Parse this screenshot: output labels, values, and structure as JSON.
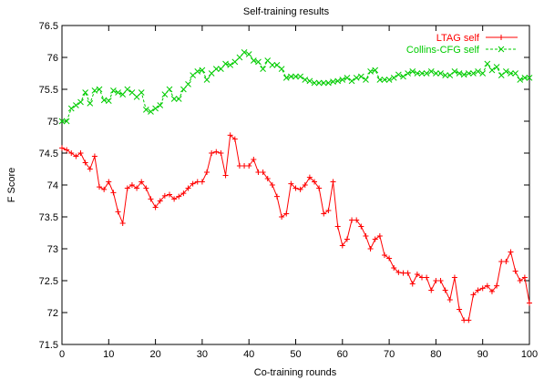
{
  "chart_data": {
    "type": "line",
    "title": "Self-training results",
    "xlabel": "Co-training rounds",
    "ylabel": "F Score",
    "xlim": [
      0,
      100
    ],
    "ylim": [
      71.5,
      76.5
    ],
    "xticks": [
      0,
      10,
      20,
      30,
      40,
      50,
      60,
      70,
      80,
      90,
      100
    ],
    "xtick_labels": [
      "0",
      "10",
      "20",
      "30",
      "40",
      "50",
      "60",
      "70",
      "80",
      "90",
      "100"
    ],
    "yticks": [
      71.5,
      72,
      72.5,
      73,
      73.5,
      74,
      74.5,
      75,
      75.5,
      76,
      76.5
    ],
    "ytick_labels": [
      "71.5",
      "72",
      "72.5",
      "73",
      "73.5",
      "74",
      "74.5",
      "75",
      "75.5",
      "76",
      "76.5"
    ],
    "grid": false,
    "legend_position": "top-right",
    "series": [
      {
        "name": "LTAG self",
        "color": "#ff0000",
        "marker": "plus",
        "line": "solid",
        "x": [
          0,
          1,
          2,
          3,
          4,
          5,
          6,
          7,
          8,
          9,
          10,
          11,
          12,
          13,
          14,
          15,
          16,
          17,
          18,
          19,
          20,
          21,
          22,
          23,
          24,
          25,
          26,
          27,
          28,
          29,
          30,
          31,
          32,
          33,
          34,
          35,
          36,
          37,
          38,
          39,
          40,
          41,
          42,
          43,
          44,
          45,
          46,
          47,
          48,
          49,
          50,
          51,
          52,
          53,
          54,
          55,
          56,
          57,
          58,
          59,
          60,
          61,
          62,
          63,
          64,
          65,
          66,
          67,
          68,
          69,
          70,
          71,
          72,
          73,
          74,
          75,
          76,
          77,
          78,
          79,
          80,
          81,
          82,
          83,
          84,
          85,
          86,
          87,
          88,
          89,
          90,
          91,
          92,
          93,
          94,
          95,
          96,
          97,
          98,
          99,
          100
        ],
        "values": [
          74.58,
          74.55,
          74.5,
          74.45,
          74.5,
          74.35,
          74.25,
          74.45,
          73.97,
          73.93,
          74.05,
          73.88,
          73.58,
          73.4,
          73.95,
          74.0,
          73.95,
          74.05,
          73.95,
          73.78,
          73.65,
          73.75,
          73.83,
          73.85,
          73.78,
          73.82,
          73.87,
          73.95,
          74.02,
          74.05,
          74.05,
          74.2,
          74.5,
          74.52,
          74.5,
          74.15,
          74.78,
          74.72,
          74.3,
          74.3,
          74.3,
          74.4,
          74.2,
          74.2,
          74.1,
          74.0,
          73.82,
          73.5,
          73.55,
          74.02,
          73.95,
          73.93,
          74.0,
          74.12,
          74.05,
          73.95,
          73.55,
          73.6,
          74.05,
          73.35,
          73.05,
          73.15,
          73.45,
          73.45,
          73.35,
          73.2,
          73.0,
          73.15,
          73.2,
          72.9,
          72.85,
          72.7,
          72.63,
          72.62,
          72.62,
          72.45,
          72.6,
          72.55,
          72.55,
          72.35,
          72.5,
          72.5,
          72.35,
          72.2,
          72.55,
          72.05,
          71.88,
          71.88,
          72.28,
          72.35,
          72.38,
          72.42,
          72.33,
          72.42,
          72.8,
          72.8,
          72.95,
          72.65,
          72.5,
          72.55,
          72.15
        ]
      },
      {
        "name": "Collins-CFG self",
        "color": "#00cc00",
        "marker": "cross",
        "line": "dashed",
        "x": [
          0,
          1,
          2,
          3,
          4,
          5,
          6,
          7,
          8,
          9,
          10,
          11,
          12,
          13,
          14,
          15,
          16,
          17,
          18,
          19,
          20,
          21,
          22,
          23,
          24,
          25,
          26,
          27,
          28,
          29,
          30,
          31,
          32,
          33,
          34,
          35,
          36,
          37,
          38,
          39,
          40,
          41,
          42,
          43,
          44,
          45,
          46,
          47,
          48,
          49,
          50,
          51,
          52,
          53,
          54,
          55,
          56,
          57,
          58,
          59,
          60,
          61,
          62,
          63,
          64,
          65,
          66,
          67,
          68,
          69,
          70,
          71,
          72,
          73,
          74,
          75,
          76,
          77,
          78,
          79,
          80,
          81,
          82,
          83,
          84,
          85,
          86,
          87,
          88,
          89,
          90,
          91,
          92,
          93,
          94,
          95,
          96,
          97,
          98,
          99,
          100
        ],
        "values": [
          75.0,
          75.0,
          75.2,
          75.25,
          75.3,
          75.45,
          75.28,
          75.48,
          75.5,
          75.33,
          75.32,
          75.48,
          75.45,
          75.42,
          75.5,
          75.45,
          75.38,
          75.45,
          75.18,
          75.15,
          75.2,
          75.25,
          75.42,
          75.5,
          75.35,
          75.35,
          75.5,
          75.58,
          75.72,
          75.78,
          75.8,
          75.65,
          75.75,
          75.82,
          75.82,
          75.9,
          75.88,
          75.93,
          76.0,
          76.08,
          76.05,
          75.95,
          75.93,
          75.82,
          75.95,
          75.88,
          75.88,
          75.82,
          75.68,
          75.7,
          75.7,
          75.7,
          75.65,
          75.63,
          75.6,
          75.6,
          75.6,
          75.6,
          75.62,
          75.63,
          75.65,
          75.68,
          75.63,
          75.68,
          75.7,
          75.65,
          75.78,
          75.8,
          75.65,
          75.65,
          75.65,
          75.68,
          75.73,
          75.7,
          75.75,
          75.78,
          75.75,
          75.75,
          75.75,
          75.78,
          75.75,
          75.75,
          75.72,
          75.72,
          75.78,
          75.75,
          75.73,
          75.75,
          75.75,
          75.78,
          75.75,
          75.9,
          75.8,
          75.85,
          75.72,
          75.78,
          75.75,
          75.75,
          75.65,
          75.68,
          75.68
        ]
      }
    ]
  }
}
